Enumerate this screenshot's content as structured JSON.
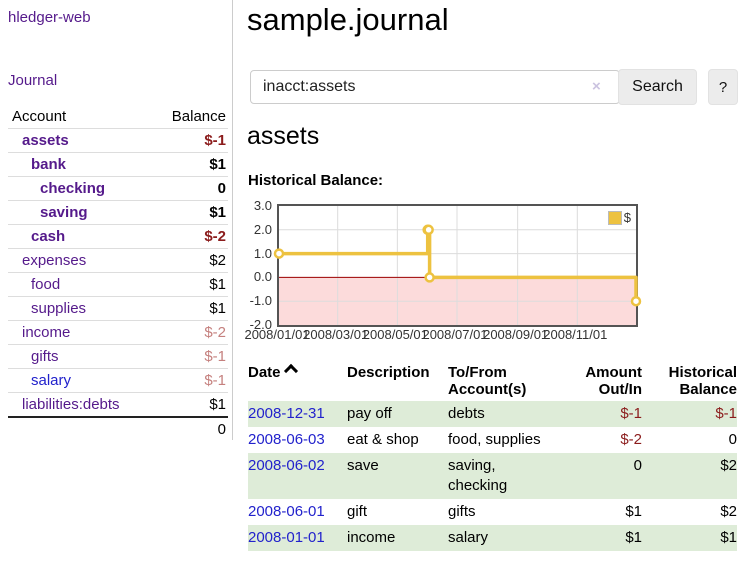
{
  "app": {
    "brand": "hledger-web",
    "nav_journal": "Journal"
  },
  "sidebar": {
    "header": {
      "account": "Account",
      "balance": "Balance"
    },
    "accounts": [
      {
        "name": "assets",
        "level": 1,
        "bold": true,
        "balance": "$-1",
        "balance_style": "neg-strong"
      },
      {
        "name": "bank",
        "level": 2,
        "bold": true,
        "balance": "$1",
        "balance_style": "normal"
      },
      {
        "name": "checking",
        "level": 3,
        "bold": true,
        "balance": "0",
        "balance_style": "normal"
      },
      {
        "name": "saving",
        "level": 3,
        "bold": true,
        "balance": "$1",
        "balance_style": "normal"
      },
      {
        "name": "cash",
        "level": 2,
        "bold": true,
        "balance": "$-2",
        "balance_style": "neg-strong"
      },
      {
        "name": "expenses",
        "level": 1,
        "bold": false,
        "balance": "$2",
        "balance_style": "normal"
      },
      {
        "name": "food",
        "level": 2,
        "bold": false,
        "balance": "$1",
        "balance_style": "normal"
      },
      {
        "name": "supplies",
        "level": 2,
        "bold": false,
        "balance": "$1",
        "balance_style": "normal"
      },
      {
        "name": "income",
        "level": 1,
        "bold": false,
        "balance": "$-2",
        "balance_style": "neg-soft"
      },
      {
        "name": "gifts",
        "level": 2,
        "bold": false,
        "balance": "$-1",
        "balance_style": "neg-soft"
      },
      {
        "name": "salary",
        "level": 2,
        "bold": false,
        "balance": "$-1",
        "balance_style": "neg-soft",
        "link_style": "blue"
      },
      {
        "name": "liabilities:debts",
        "level": 1,
        "bold": false,
        "balance": "$1",
        "balance_style": "normal"
      }
    ],
    "total": "0"
  },
  "header": {
    "title": "sample.journal"
  },
  "search": {
    "value": "inacct:assets",
    "clear_icon": "×",
    "button_label": "Search",
    "help_label": "?"
  },
  "account_page": {
    "heading": "assets",
    "chart_label": "Historical Balance:"
  },
  "chart_data": {
    "type": "line",
    "step": true,
    "title": "Historical Balance of assets",
    "series": [
      {
        "name": "$",
        "color": "#edc240",
        "points": [
          [
            "2008-01-01",
            1.0
          ],
          [
            "2008-06-01",
            2.0
          ],
          [
            "2008-06-02",
            2.0
          ],
          [
            "2008-06-03",
            0.0
          ],
          [
            "2008-12-31",
            -1.0
          ]
        ]
      }
    ],
    "xrange": [
      "2008-01-01",
      "2008-12-31"
    ],
    "ylim": [
      -2.0,
      3.0
    ],
    "yticks": [
      3.0,
      2.0,
      1.0,
      0.0,
      -1.0,
      -2.0
    ],
    "xticks": [
      {
        "date": "2008-01-01",
        "label": "2008/01/01"
      },
      {
        "date": "2008-03-01",
        "label": "2008/03/01"
      },
      {
        "date": "2008-05-01",
        "label": "2008/05/01"
      },
      {
        "date": "2008-07-01",
        "label": "2008/07/01"
      },
      {
        "date": "2008-09-01",
        "label": "2008/09/01"
      },
      {
        "date": "2008-11-01",
        "label": "2008/11/01"
      }
    ],
    "grid": true,
    "legend_position": "top-right",
    "legend": [
      {
        "label": "$",
        "color": "#edc240"
      }
    ],
    "colors": {
      "negative_region": "#fcdbdb",
      "zero_line": "#a00000",
      "grid_line": "#dcdcdc",
      "plot_border": "#545454",
      "marker_fill": "#ffffff"
    }
  },
  "register": {
    "columns": {
      "date": "Date",
      "description": "Description",
      "accounts_line1": "To/From",
      "accounts_line2": "Account(s)",
      "amount_line1": "Amount",
      "amount_line2": "Out/In",
      "balance_line1": "Historical",
      "balance_line2": "Balance"
    },
    "sort_icon": "sort-ascending",
    "rows": [
      {
        "date": "2008-12-31",
        "description": "pay off",
        "accounts": "debts",
        "amount": "$-1",
        "amount_negative": true,
        "balance": "$-1",
        "balance_negative": true,
        "striped": true
      },
      {
        "date": "2008-06-03",
        "description": "eat & shop",
        "accounts": "food, supplies",
        "amount": "$-2",
        "amount_negative": true,
        "balance": "0",
        "balance_negative": false,
        "striped": false
      },
      {
        "date": "2008-06-02",
        "description": "save",
        "accounts": "saving, checking",
        "amount": "0",
        "amount_negative": false,
        "balance": "$2",
        "balance_negative": false,
        "striped": true
      },
      {
        "date": "2008-06-01",
        "description": "gift",
        "accounts": "gifts",
        "amount": "$1",
        "amount_negative": false,
        "balance": "$2",
        "balance_negative": false,
        "striped": false
      },
      {
        "date": "2008-01-01",
        "description": "income",
        "accounts": "salary",
        "amount": "$1",
        "amount_negative": false,
        "balance": "$1",
        "balance_negative": false,
        "striped": true
      }
    ]
  }
}
